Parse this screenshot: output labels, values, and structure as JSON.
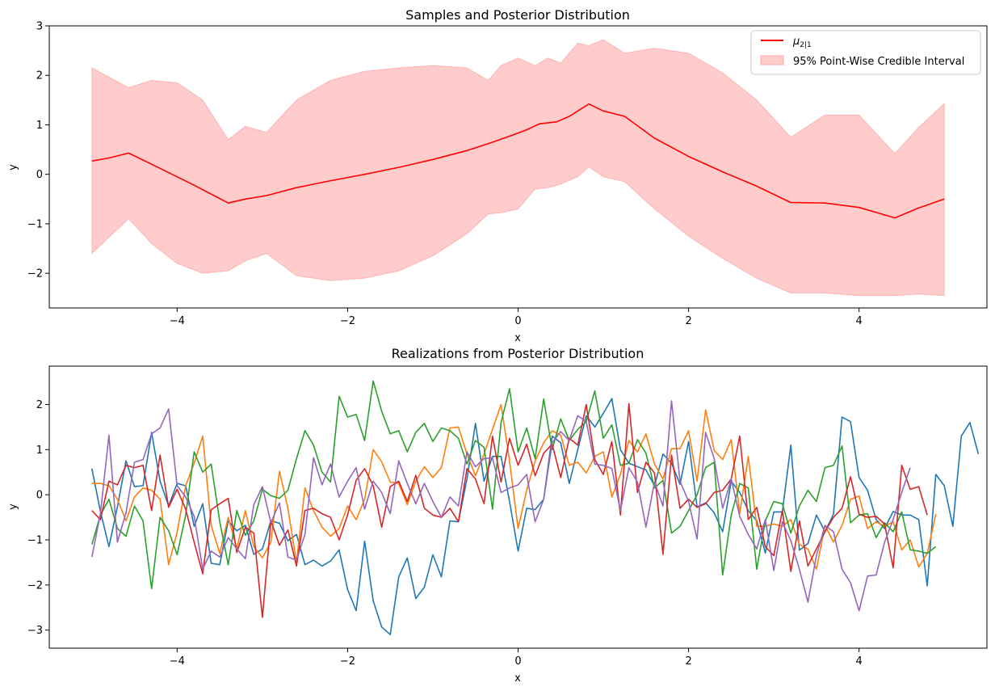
{
  "chart_data": [
    {
      "type": "line",
      "title": "Samples and Posterior Distribution",
      "xlabel": "x",
      "ylabel": "y",
      "xlim": [
        -5.5,
        5.5
      ],
      "ylim": [
        -2.7,
        3.0
      ],
      "xticks": [
        -4,
        -2,
        0,
        2,
        4
      ],
      "xtick_labels": [
        "−4",
        "−2",
        "0",
        "2",
        "4"
      ],
      "yticks": [
        -2,
        -1,
        0,
        1,
        2,
        3
      ],
      "ytick_labels": [
        "−2",
        "−1",
        "0",
        "1",
        "2",
        "3"
      ],
      "legend_position": "top-right",
      "legend": [
        {
          "label_base": "μ",
          "label_sub": "2|1",
          "kind": "line",
          "color": "#ff0000"
        },
        {
          "label": "95% Point-Wise Credible Interval",
          "kind": "fill",
          "color": "#ffcccc"
        }
      ],
      "series": [
        {
          "name_base": "μ",
          "name_sub": "2|1",
          "color": "#ff0000",
          "x": [
            -5.0,
            -4.8,
            -4.57,
            -4.2,
            -3.8,
            -3.4,
            -3.2,
            -2.95,
            -2.6,
            -2.2,
            -1.8,
            -1.4,
            -1.0,
            -0.6,
            -0.35,
            -0.1,
            0.1,
            0.25,
            0.45,
            0.6,
            0.83,
            1.0,
            1.25,
            1.6,
            2.0,
            2.4,
            2.8,
            3.2,
            3.6,
            4.0,
            4.42,
            4.7,
            5.0
          ],
          "y": [
            0.27,
            0.33,
            0.43,
            0.12,
            -0.22,
            -0.58,
            -0.5,
            -0.43,
            -0.27,
            -0.13,
            0.0,
            0.14,
            0.3,
            0.48,
            0.62,
            0.77,
            0.9,
            1.02,
            1.06,
            1.17,
            1.42,
            1.28,
            1.17,
            0.73,
            0.36,
            0.05,
            -0.24,
            -0.57,
            -0.58,
            -0.67,
            -0.88,
            -0.68,
            -0.5
          ]
        }
      ],
      "band": {
        "x": [
          -5.0,
          -4.57,
          -4.3,
          -4.0,
          -3.7,
          -3.4,
          -3.2,
          -2.95,
          -2.6,
          -2.2,
          -1.8,
          -1.4,
          -1.0,
          -0.6,
          -0.35,
          -0.2,
          0.0,
          0.2,
          0.35,
          0.5,
          0.7,
          0.83,
          1.0,
          1.25,
          1.6,
          2.0,
          2.4,
          2.8,
          3.2,
          3.6,
          4.0,
          4.42,
          4.7,
          5.0
        ],
        "upper": [
          2.15,
          1.75,
          1.9,
          1.85,
          1.5,
          0.7,
          0.97,
          0.85,
          1.5,
          1.9,
          2.08,
          2.15,
          2.2,
          2.15,
          1.9,
          2.2,
          2.35,
          2.2,
          2.35,
          2.25,
          2.65,
          2.6,
          2.72,
          2.45,
          2.55,
          2.45,
          2.05,
          1.5,
          0.75,
          1.2,
          1.2,
          0.42,
          0.95,
          1.43
        ],
        "lower": [
          -1.6,
          -0.9,
          -1.4,
          -1.8,
          -2.0,
          -1.95,
          -1.75,
          -1.6,
          -2.05,
          -2.15,
          -2.1,
          -1.95,
          -1.65,
          -1.2,
          -0.8,
          -0.78,
          -0.7,
          -0.3,
          -0.27,
          -0.2,
          -0.05,
          0.15,
          -0.05,
          -0.15,
          -0.7,
          -1.25,
          -1.7,
          -2.1,
          -2.4,
          -2.4,
          -2.45,
          -2.45,
          -2.42,
          -2.45
        ]
      }
    },
    {
      "type": "line",
      "title": "Realizations from Posterior Distribution",
      "xlabel": "x",
      "ylabel": "y",
      "xlim": [
        -5.5,
        5.5
      ],
      "ylim": [
        -3.4,
        2.85
      ],
      "xticks": [
        -4,
        -2,
        0,
        2,
        4
      ],
      "xtick_labels": [
        "−4",
        "−2",
        "0",
        "2",
        "4"
      ],
      "yticks": [
        -3,
        -2,
        -1,
        0,
        1,
        2
      ],
      "ytick_labels": [
        "−3",
        "−2",
        "−1",
        "0",
        "1",
        "2"
      ],
      "x_start": -5.0,
      "x_step": 0.1,
      "series": [
        {
          "color": "#1f77b4",
          "y": [
            0.58,
            -0.37,
            -1.15,
            -0.27,
            0.75,
            0.18,
            0.2,
            1.38,
            0.3,
            -0.25,
            0.25,
            0.2,
            -0.7,
            -0.2,
            -1.52,
            -1.55,
            -0.58,
            -0.8,
            -0.68,
            -1.32,
            -1.2,
            -0.58,
            -0.63,
            -1.02,
            -0.88,
            -1.55,
            -1.45,
            -1.58,
            -1.47,
            -1.22,
            -2.1,
            -2.57,
            -1.03,
            -2.35,
            -2.93,
            -3.1,
            -1.82,
            -1.4,
            -2.3,
            -2.05,
            -1.33,
            -1.82,
            -0.58,
            -0.6,
            0.35,
            1.58,
            0.3,
            0.85,
            0.85,
            -0.15,
            -1.25,
            -0.3,
            -0.33,
            -0.1,
            1.3,
            1.15,
            0.25,
            1.0,
            1.75,
            1.5,
            1.8,
            2.13,
            1.0,
            0.7,
            0.62,
            0.55,
            0.2,
            0.9,
            0.7,
            0.23,
            1.18,
            -0.27,
            -0.18,
            -0.4,
            -0.82,
            0.3,
            0.05,
            -0.35,
            -0.58,
            -1.29,
            -0.38,
            -0.38,
            1.1,
            -1.23,
            -1.08,
            -0.45,
            -0.82,
            -0.43,
            1.72,
            1.62,
            0.38,
            0.1,
            -0.55,
            -0.75,
            -0.37,
            -0.45,
            -0.45,
            -0.55,
            -2.02,
            0.45,
            0.2,
            -0.7,
            1.3,
            1.6,
            0.9
          ]
        },
        {
          "color": "#ff7f0e",
          "y": [
            0.25,
            0.25,
            0.2,
            -0.1,
            -0.58,
            -0.05,
            0.15,
            0.1,
            -0.1,
            -1.55,
            -0.83,
            0.2,
            0.7,
            1.3,
            -0.68,
            -1.3,
            -0.5,
            -1.2,
            -0.35,
            -1.15,
            -1.4,
            -1.05,
            0.52,
            -0.3,
            -1.5,
            0.15,
            -0.35,
            -0.72,
            -0.92,
            -0.75,
            -0.25,
            -0.55,
            -0.1,
            1.0,
            0.73,
            0.28,
            0.25,
            -0.22,
            0.3,
            0.62,
            0.38,
            0.6,
            1.48,
            1.5,
            0.9,
            0.42,
            0.9,
            1.45,
            2.0,
            0.75,
            -0.75,
            0.1,
            0.75,
            1.15,
            1.42,
            1.32,
            0.65,
            0.72,
            0.48,
            0.85,
            0.95,
            -0.05,
            0.45,
            1.2,
            0.95,
            1.35,
            0.68,
            0.35,
            1.02,
            1.02,
            1.42,
            0.3,
            1.88,
            0.98,
            0.78,
            1.22,
            -0.42,
            0.85,
            -0.7,
            -0.7,
            -0.65,
            -0.7,
            -0.55,
            -1.1,
            -1.2,
            -1.65,
            -0.68,
            -1.05,
            -0.68,
            -0.1,
            -0.03,
            -0.75,
            -0.6,
            -0.7,
            -0.6,
            -1.22,
            -1.0,
            -1.6,
            -1.3,
            -0.43
          ]
        },
        {
          "color": "#2ca02c",
          "y": [
            -1.1,
            -0.45,
            -0.1,
            -0.75,
            -0.92,
            -0.25,
            -0.58,
            -2.08,
            -0.5,
            -0.8,
            -1.33,
            -0.45,
            0.95,
            0.5,
            0.68,
            -0.6,
            -1.55,
            -0.35,
            -0.9,
            -0.58,
            0.12,
            -0.02,
            -0.08,
            0.1,
            0.8,
            1.42,
            1.1,
            0.5,
            0.28,
            2.18,
            1.72,
            1.78,
            1.2,
            2.52,
            1.85,
            1.35,
            1.42,
            0.95,
            1.38,
            1.58,
            1.18,
            1.48,
            1.42,
            1.25,
            0.68,
            1.2,
            1.05,
            -0.32,
            1.6,
            2.35,
            0.95,
            1.48,
            0.8,
            2.12,
            1.0,
            1.68,
            1.2,
            1.45,
            1.62,
            2.3,
            1.25,
            1.55,
            0.65,
            0.7,
            1.22,
            0.92,
            0.15,
            0.32,
            -0.85,
            -0.7,
            -0.35,
            0.0,
            0.6,
            0.72,
            -1.78,
            -0.45,
            0.25,
            0.15,
            -1.65,
            -0.58,
            -0.15,
            -0.2,
            -0.85,
            -0.25,
            0.1,
            -0.15,
            0.6,
            0.65,
            1.08,
            -0.62,
            -0.45,
            -0.42,
            -0.95,
            -0.62,
            -0.82,
            -0.38,
            -1.22,
            -1.25,
            -1.3,
            -1.15
          ]
        },
        {
          "color": "#d62728",
          "y": [
            -0.35,
            -0.55,
            0.3,
            0.22,
            0.65,
            0.6,
            0.65,
            -0.35,
            0.88,
            -0.28,
            0.12,
            -0.32,
            -1.05,
            -1.75,
            -0.33,
            -0.2,
            -0.08,
            -1.28,
            -0.72,
            -0.85,
            -2.72,
            -0.58,
            -1.12,
            -0.78,
            -1.58,
            -0.35,
            -0.3,
            -0.42,
            -0.5,
            -1.0,
            -0.45,
            0.32,
            0.58,
            0.2,
            -0.72,
            0.18,
            0.3,
            -0.15,
            0.43,
            -0.3,
            -0.45,
            -0.5,
            -0.3,
            -0.6,
            0.58,
            0.35,
            -0.2,
            1.3,
            0.28,
            1.25,
            0.65,
            1.12,
            0.42,
            0.92,
            1.12,
            0.38,
            1.25,
            1.1,
            2.0,
            0.78,
            0.45,
            1.18,
            -0.45,
            2.02,
            0.05,
            0.72,
            0.48,
            -1.32,
            0.88,
            -0.3,
            -0.1,
            -0.28,
            -0.2,
            0.05,
            0.1,
            0.35,
            1.3,
            -0.55,
            -0.28,
            -1.15,
            -1.35,
            -0.35,
            -1.7,
            -0.58,
            -1.58,
            -1.2,
            -0.82,
            -0.5,
            -0.3,
            0.4,
            -0.43,
            -0.5,
            -0.48,
            -0.65,
            -1.62,
            0.65,
            0.12,
            0.18,
            -0.45
          ]
        },
        {
          "color": "#9467bd",
          "y": [
            -1.38,
            -0.42,
            1.32,
            -1.05,
            -0.4,
            0.72,
            0.78,
            1.35,
            1.48,
            1.9,
            0.2,
            -0.05,
            -0.48,
            -1.65,
            -1.25,
            -1.38,
            -0.95,
            -1.2,
            -1.42,
            -0.22,
            0.18,
            -0.62,
            -0.18,
            -1.38,
            -1.45,
            -0.88,
            0.82,
            0.22,
            0.68,
            -0.05,
            0.3,
            0.6,
            -0.32,
            0.3,
            0.05,
            -0.42,
            0.75,
            0.25,
            -0.2,
            0.25,
            -0.15,
            -0.5,
            -0.05,
            -0.25,
            0.95,
            0.62,
            0.8,
            0.82,
            0.05,
            0.15,
            0.22,
            0.45,
            -0.6,
            -0.1,
            1.15,
            1.4,
            1.2,
            1.75,
            1.62,
            0.68,
            0.65,
            0.58,
            -0.35,
            0.6,
            0.28,
            -0.72,
            0.28,
            -0.25,
            2.08,
            0.3,
            -0.15,
            -0.98,
            1.38,
            0.8,
            -0.3,
            0.35,
            -0.48,
            -0.88,
            -1.2,
            -0.55,
            -1.68,
            -0.6,
            -1.02,
            -1.65,
            -2.38,
            -1.35,
            -0.68,
            -0.82,
            -1.65,
            -1.95,
            -2.57,
            -1.8,
            -1.78,
            -1.05,
            -0.55,
            0.05,
            0.6
          ]
        }
      ]
    }
  ]
}
